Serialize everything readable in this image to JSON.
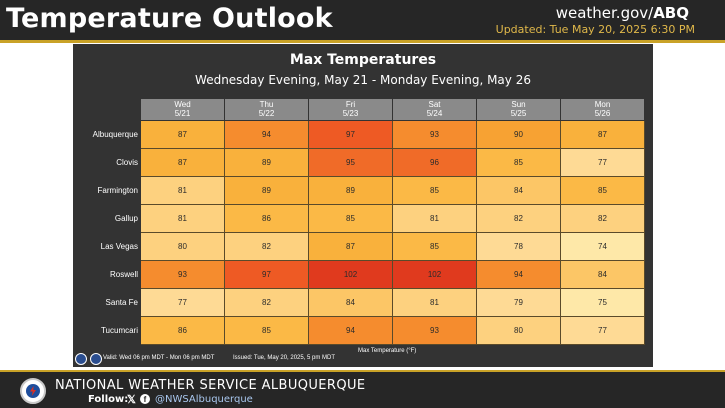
{
  "header": {
    "title": "Temperature Outlook",
    "site_prefix": "weather.gov/",
    "site_office": "ABQ",
    "updated": "Updated: Tue May 20, 2025 6:30 PM"
  },
  "panel": {
    "title": "Max Temperatures",
    "subtitle": "Wednesday Evening, May 21 - Monday Evening, May 26",
    "valid": "Valid: Wed 06 pm MDT - Mon 06 pm MDT",
    "issued": "Issued: Tue, May 20, 2025, 5 pm MDT",
    "legend_label": "Max Temperature (°F)"
  },
  "days": [
    {
      "day": "Wed",
      "date": "5/21"
    },
    {
      "day": "Thu",
      "date": "5/22"
    },
    {
      "day": "Fri",
      "date": "5/23"
    },
    {
      "day": "Sat",
      "date": "5/24"
    },
    {
      "day": "Sun",
      "date": "5/25"
    },
    {
      "day": "Mon",
      "date": "5/26"
    }
  ],
  "chart_data": {
    "type": "heatmap",
    "title": "Max Temperatures",
    "subtitle": "Wednesday Evening, May 21 - Monday Evening, May 26",
    "x": [
      "Wed 5/21",
      "Thu 5/22",
      "Fri 5/23",
      "Sat 5/24",
      "Sun 5/25",
      "Mon 5/26"
    ],
    "y": [
      "Albuquerque",
      "Clovis",
      "Farmington",
      "Gallup",
      "Las Vegas",
      "Roswell",
      "Santa Fe",
      "Tucumcari"
    ],
    "values": [
      [
        87,
        94,
        97,
        93,
        90,
        87
      ],
      [
        87,
        89,
        95,
        96,
        85,
        77
      ],
      [
        81,
        89,
        89,
        85,
        84,
        85
      ],
      [
        81,
        86,
        85,
        81,
        82,
        82
      ],
      [
        80,
        82,
        87,
        85,
        78,
        74
      ],
      [
        93,
        97,
        102,
        102,
        94,
        84
      ],
      [
        77,
        82,
        84,
        81,
        79,
        75
      ],
      [
        86,
        85,
        94,
        93,
        80,
        77
      ]
    ],
    "colorbar_label": "Max Temperature (°F)"
  },
  "footer": {
    "office": "NATIONAL WEATHER SERVICE ALBUQUERQUE",
    "follow": "Follow:",
    "handle": "@NWSAlbuquerque",
    "x_icon": "x-logo-icon",
    "fb_icon": "facebook-icon"
  }
}
